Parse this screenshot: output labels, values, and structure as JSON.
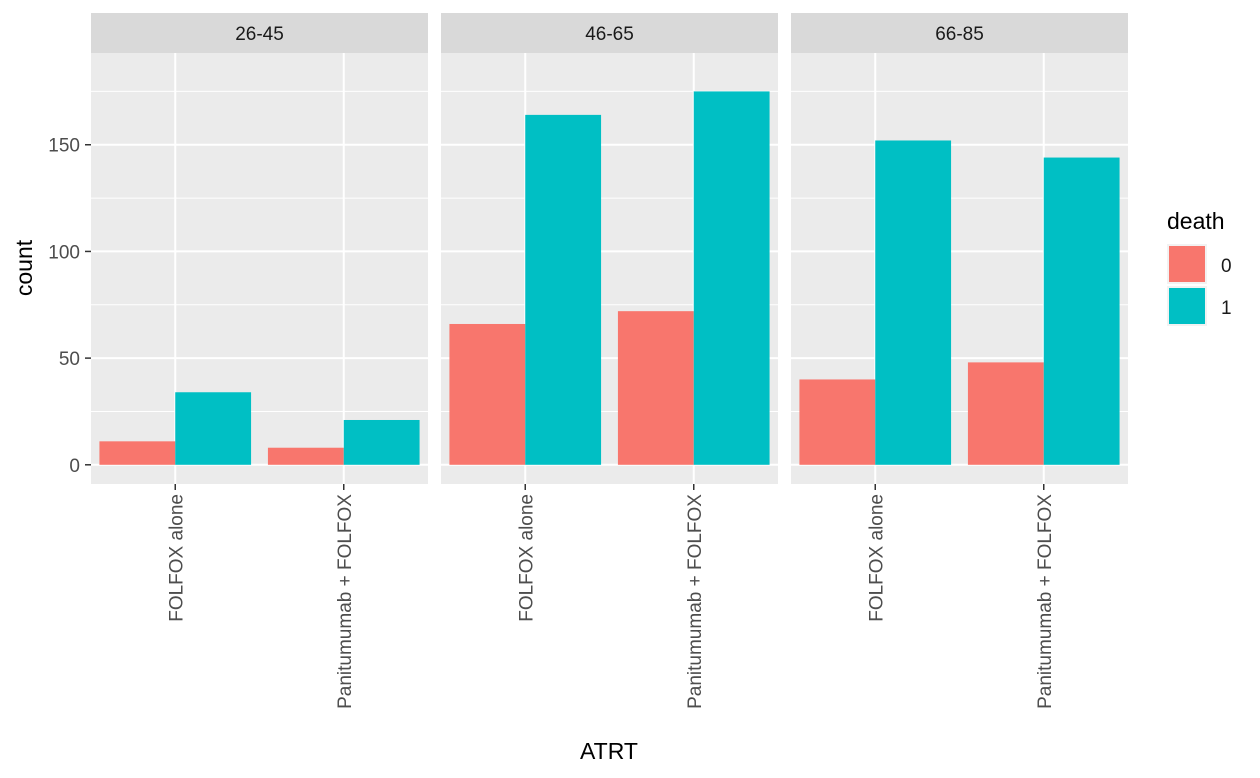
{
  "chart_data": {
    "type": "bar",
    "facet_by": "age group",
    "facets": [
      {
        "label": "26-45",
        "categories": [
          "FOLFOX alone",
          "Panitumumab + FOLFOX"
        ],
        "series": [
          {
            "name": "0",
            "values": [
              11,
              8
            ]
          },
          {
            "name": "1",
            "values": [
              34,
              21
            ]
          }
        ]
      },
      {
        "label": "46-65",
        "categories": [
          "FOLFOX alone",
          "Panitumumab + FOLFOX"
        ],
        "series": [
          {
            "name": "0",
            "values": [
              66,
              72
            ]
          },
          {
            "name": "1",
            "values": [
              164,
              175
            ]
          }
        ]
      },
      {
        "label": "66-85",
        "categories": [
          "FOLFOX alone",
          "Panitumumab + FOLFOX"
        ],
        "series": [
          {
            "name": "0",
            "values": [
              40,
              48
            ]
          },
          {
            "name": "1",
            "values": [
              152,
              144
            ]
          }
        ]
      }
    ],
    "xlabel": "ATRT",
    "ylabel": "count",
    "ylim": [
      -9,
      193
    ],
    "yticks": [
      0,
      50,
      100,
      150
    ],
    "grid": true,
    "legend": {
      "title": "death",
      "placement": "right",
      "entries": [
        {
          "label": "0",
          "color": "#F8766D"
        },
        {
          "label": "1",
          "color": "#00BFC4"
        }
      ]
    },
    "colors": {
      "0": "#F8766D",
      "1": "#00BFC4",
      "panel_bg": "#EBEBEB",
      "strip_bg": "#D9D9D9",
      "grid": "#FFFFFF"
    }
  }
}
